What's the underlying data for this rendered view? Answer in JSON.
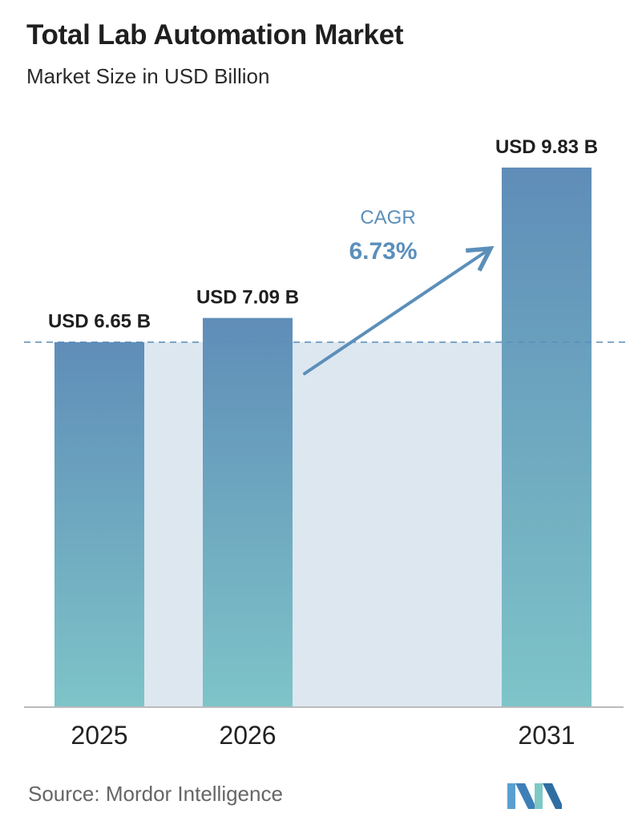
{
  "header": {
    "title": "Total Lab Automation Market",
    "subtitle": "Market Size in USD Billion"
  },
  "chart_data": {
    "type": "bar",
    "categories": [
      "2025",
      "2026",
      "2031"
    ],
    "values": [
      6.65,
      7.09,
      9.83
    ],
    "data_labels": [
      "USD 6.65 B",
      "USD 7.09 B",
      "USD 9.83 B"
    ],
    "ylim": [
      0,
      10.4
    ],
    "reference_line": 6.65,
    "cagr": {
      "label": "CAGR",
      "value": "6.73%"
    },
    "grid": false,
    "legend": "none"
  },
  "colors": {
    "bar_top": "#5f8db8",
    "bar_bottom": "#7ec4c8",
    "shaded_band": "#dde7f0",
    "cagr": "#5b8fba",
    "dashed_line": "#5b8fba",
    "axis": "#bbbbbb"
  },
  "footer": {
    "source": "Source:  Mordor Intelligence",
    "logo_icon": "mordor-intelligence-logo-icon"
  }
}
